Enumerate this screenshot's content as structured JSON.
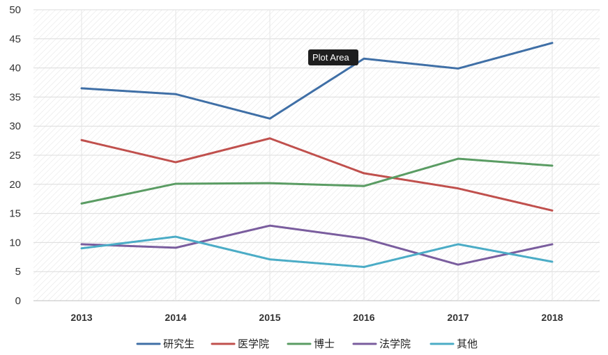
{
  "chart_data": {
    "type": "line",
    "categories": [
      "2013",
      "2014",
      "2015",
      "2016",
      "2017",
      "2018"
    ],
    "ylim": [
      0,
      50
    ],
    "yticks": [
      0,
      5,
      10,
      15,
      20,
      25,
      30,
      35,
      40,
      45,
      50
    ],
    "grid": true,
    "legend_position": "bottom",
    "series": [
      {
        "name": "研究生",
        "color": "#3f6fa6",
        "values": [
          36.5,
          35.5,
          31.3,
          41.6,
          39.9,
          44.3
        ]
      },
      {
        "name": "医学院",
        "color": "#c0504d",
        "values": [
          27.6,
          23.8,
          27.9,
          21.9,
          19.3,
          15.5
        ]
      },
      {
        "name": "博士",
        "color": "#5a9c63",
        "values": [
          16.7,
          20.1,
          20.2,
          19.7,
          24.4,
          23.2
        ]
      },
      {
        "name": "法学院",
        "color": "#7a5d9e",
        "values": [
          9.7,
          9.1,
          12.9,
          10.7,
          6.2,
          9.7
        ]
      },
      {
        "name": "其他",
        "color": "#4bacc6",
        "values": [
          9.0,
          11.0,
          7.1,
          5.8,
          9.7,
          6.7
        ]
      }
    ]
  },
  "tooltip": {
    "label": "Plot Area"
  }
}
